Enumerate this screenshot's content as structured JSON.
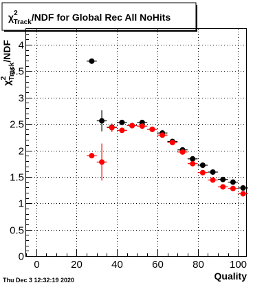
{
  "chart_data": {
    "type": "scatter",
    "title_prefix": "χ",
    "title_sup": "2",
    "title_sub": "Track",
    "title_suffix": "/NDF for Global Rec All NoHits",
    "xlabel": "Quality",
    "ylabel_prefix": "χ",
    "ylabel_sup": "2",
    "ylabel_sub": "Track",
    "ylabel_suffix": "/NDF",
    "xlim": [
      -5,
      104
    ],
    "ylim": [
      0,
      4.3
    ],
    "xticks": [
      "0",
      "20",
      "40",
      "60",
      "80",
      "100"
    ],
    "yticks": [
      "0",
      "0.5",
      "1",
      "1.5",
      "2",
      "2.5",
      "3",
      "3.5",
      "4"
    ],
    "grid": true,
    "series": [
      {
        "color": "#000000",
        "points": [
          {
            "x": 27.5,
            "y": 3.69,
            "xerr": 2.5,
            "yerr": 0.0
          },
          {
            "x": 32.5,
            "y": 2.56,
            "xerr": 2.5,
            "yerr": 0.2
          },
          {
            "x": 37.5,
            "y": 2.44,
            "xerr": 2.5,
            "yerr": 0.06
          },
          {
            "x": 42.5,
            "y": 2.53,
            "xerr": 2.5,
            "yerr": 0.03
          },
          {
            "x": 47.5,
            "y": 2.47,
            "xerr": 2.5,
            "yerr": 0.02
          },
          {
            "x": 52.5,
            "y": 2.53,
            "xerr": 2.5,
            "yerr": 0.02
          },
          {
            "x": 57.5,
            "y": 2.4,
            "xerr": 2.5,
            "yerr": 0.02
          },
          {
            "x": 62.5,
            "y": 2.33,
            "xerr": 2.5,
            "yerr": 0.02
          },
          {
            "x": 67.5,
            "y": 2.17,
            "xerr": 2.5,
            "yerr": 0.02
          },
          {
            "x": 72.5,
            "y": 2.01,
            "xerr": 2.5,
            "yerr": 0.02
          },
          {
            "x": 77.5,
            "y": 1.84,
            "xerr": 2.5,
            "yerr": 0.02
          },
          {
            "x": 82.5,
            "y": 1.72,
            "xerr": 2.5,
            "yerr": 0.02
          },
          {
            "x": 87.5,
            "y": 1.59,
            "xerr": 2.5,
            "yerr": 0.02
          },
          {
            "x": 92.5,
            "y": 1.45,
            "xerr": 2.5,
            "yerr": 0.02
          },
          {
            "x": 97.5,
            "y": 1.4,
            "xerr": 2.5,
            "yerr": 0.02
          },
          {
            "x": 102.5,
            "y": 1.29,
            "xerr": 2.5,
            "yerr": 0.02
          }
        ]
      },
      {
        "color": "#ff0000",
        "points": [
          {
            "x": 27.5,
            "y": 1.9,
            "xerr": 2.5,
            "yerr": 0.0
          },
          {
            "x": 32.5,
            "y": 1.78,
            "xerr": 2.5,
            "yerr": 0.35
          },
          {
            "x": 37.5,
            "y": 2.43,
            "xerr": 2.5,
            "yerr": 0.08
          },
          {
            "x": 42.5,
            "y": 2.38,
            "xerr": 2.5,
            "yerr": 0.04
          },
          {
            "x": 47.5,
            "y": 2.47,
            "xerr": 2.5,
            "yerr": 0.03
          },
          {
            "x": 52.5,
            "y": 2.46,
            "xerr": 2.5,
            "yerr": 0.02
          },
          {
            "x": 57.5,
            "y": 2.4,
            "xerr": 2.5,
            "yerr": 0.02
          },
          {
            "x": 62.5,
            "y": 2.29,
            "xerr": 2.5,
            "yerr": 0.02
          },
          {
            "x": 67.5,
            "y": 2.15,
            "xerr": 2.5,
            "yerr": 0.02
          },
          {
            "x": 72.5,
            "y": 1.97,
            "xerr": 2.5,
            "yerr": 0.02
          },
          {
            "x": 77.5,
            "y": 1.75,
            "xerr": 2.5,
            "yerr": 0.02
          },
          {
            "x": 82.5,
            "y": 1.58,
            "xerr": 2.5,
            "yerr": 0.02
          },
          {
            "x": 87.5,
            "y": 1.44,
            "xerr": 2.5,
            "yerr": 0.02
          },
          {
            "x": 92.5,
            "y": 1.31,
            "xerr": 2.5,
            "yerr": 0.02
          },
          {
            "x": 97.5,
            "y": 1.28,
            "xerr": 2.5,
            "yerr": 0.02
          },
          {
            "x": 102.5,
            "y": 1.18,
            "xerr": 2.5,
            "yerr": 0.02
          }
        ]
      }
    ]
  },
  "footer": {
    "timestamp": "Thu Dec  3 12:32:19 2020"
  }
}
